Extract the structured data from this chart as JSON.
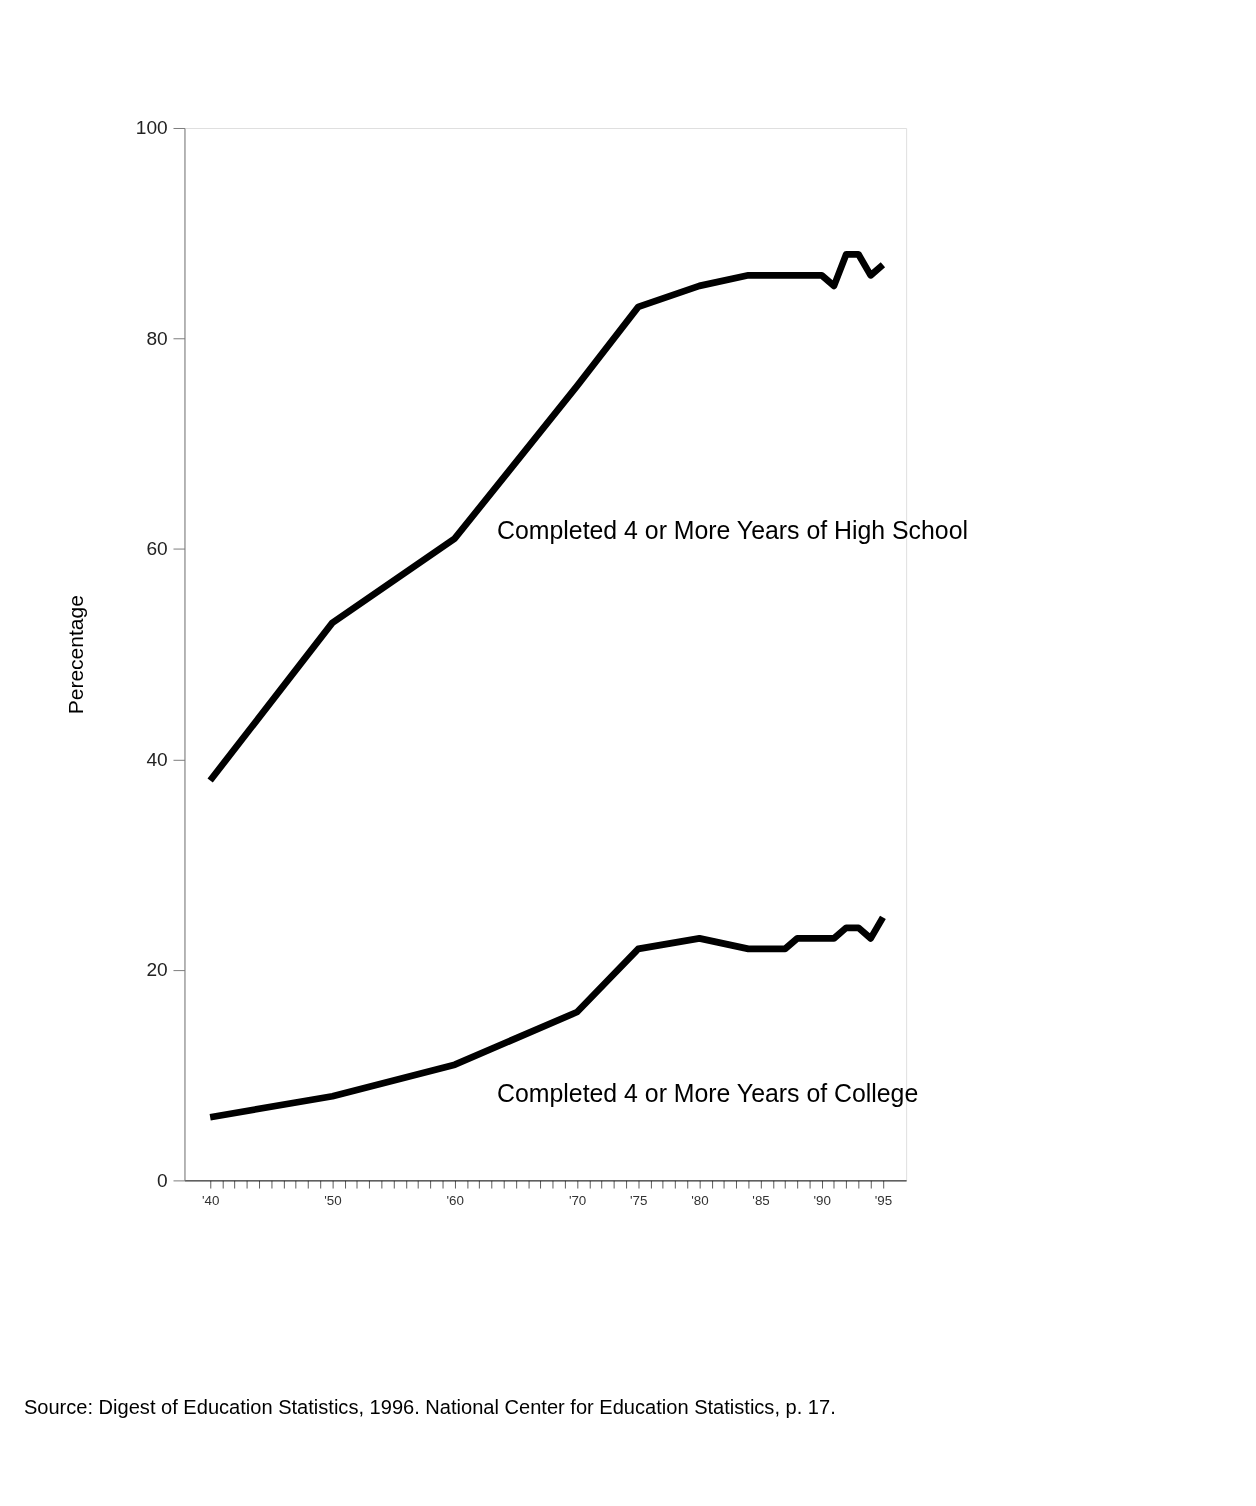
{
  "chart_data": {
    "type": "line",
    "ylabel": "Perecentage",
    "ylim": [
      0,
      100
    ],
    "yticks": [
      0,
      20,
      40,
      60,
      80,
      100
    ],
    "xlim": [
      1937.9,
      1996.9
    ],
    "xticks": [
      {
        "value": 1940,
        "label": "'40"
      },
      {
        "value": 1941,
        "label": null
      },
      {
        "value": 1942,
        "label": null
      },
      {
        "value": 1943,
        "label": null
      },
      {
        "value": 1944,
        "label": null
      },
      {
        "value": 1945,
        "label": null
      },
      {
        "value": 1946,
        "label": null
      },
      {
        "value": 1947,
        "label": null
      },
      {
        "value": 1948,
        "label": null
      },
      {
        "value": 1949,
        "label": null
      },
      {
        "value": 1950,
        "label": "'50"
      },
      {
        "value": 1951,
        "label": null
      },
      {
        "value": 1952,
        "label": null
      },
      {
        "value": 1953,
        "label": null
      },
      {
        "value": 1954,
        "label": null
      },
      {
        "value": 1955,
        "label": null
      },
      {
        "value": 1956,
        "label": null
      },
      {
        "value": 1957,
        "label": null
      },
      {
        "value": 1958,
        "label": null
      },
      {
        "value": 1959,
        "label": null
      },
      {
        "value": 1960,
        "label": "'60"
      },
      {
        "value": 1961,
        "label": null
      },
      {
        "value": 1962,
        "label": null
      },
      {
        "value": 1963,
        "label": null
      },
      {
        "value": 1964,
        "label": null
      },
      {
        "value": 1965,
        "label": null
      },
      {
        "value": 1966,
        "label": null
      },
      {
        "value": 1967,
        "label": null
      },
      {
        "value": 1968,
        "label": null
      },
      {
        "value": 1969,
        "label": null
      },
      {
        "value": 1970,
        "label": "'70"
      },
      {
        "value": 1971,
        "label": null
      },
      {
        "value": 1972,
        "label": null
      },
      {
        "value": 1973,
        "label": null
      },
      {
        "value": 1974,
        "label": null
      },
      {
        "value": 1975,
        "label": "'75"
      },
      {
        "value": 1976,
        "label": null
      },
      {
        "value": 1977,
        "label": null
      },
      {
        "value": 1978,
        "label": null
      },
      {
        "value": 1979,
        "label": null
      },
      {
        "value": 1980,
        "label": "'80"
      },
      {
        "value": 1981,
        "label": null
      },
      {
        "value": 1982,
        "label": null
      },
      {
        "value": 1983,
        "label": null
      },
      {
        "value": 1984,
        "label": null
      },
      {
        "value": 1985,
        "label": "'85"
      },
      {
        "value": 1986,
        "label": null
      },
      {
        "value": 1987,
        "label": null
      },
      {
        "value": 1988,
        "label": null
      },
      {
        "value": 1989,
        "label": null
      },
      {
        "value": 1990,
        "label": "'90"
      },
      {
        "value": 1991,
        "label": null
      },
      {
        "value": 1992,
        "label": null
      },
      {
        "value": 1993,
        "label": null
      },
      {
        "value": 1994,
        "label": null
      },
      {
        "value": 1995,
        "label": "'95"
      }
    ],
    "grid": false,
    "legend": false,
    "marker": "none",
    "line_style": "solid",
    "series": [
      {
        "color": "#000000",
        "x": [
          1940,
          1950,
          1960,
          1970,
          1975,
          1980,
          1984,
          1990,
          1991,
          1992,
          1993,
          1994,
          1995
        ],
        "values": [
          38,
          53,
          61,
          75.5,
          83,
          85,
          86,
          86,
          85,
          88,
          88,
          86,
          87
        ]
      },
      {
        "color": "#000000",
        "x": [
          1940,
          1950,
          1960,
          1970,
          1975,
          1980,
          1984,
          1987,
          1988,
          1991,
          1992,
          1993,
          1994,
          1995
        ],
        "values": [
          6,
          8,
          11,
          16,
          22,
          23,
          22,
          22,
          23,
          23,
          24,
          24,
          23,
          25
        ]
      }
    ],
    "annotations": [
      "Completed 4 or More Years of High School",
      "Completed 4 or More Years of College",
      "Source: Digest of Education Statistics, 1996. National Center for Education Statistics, p. 17."
    ]
  }
}
